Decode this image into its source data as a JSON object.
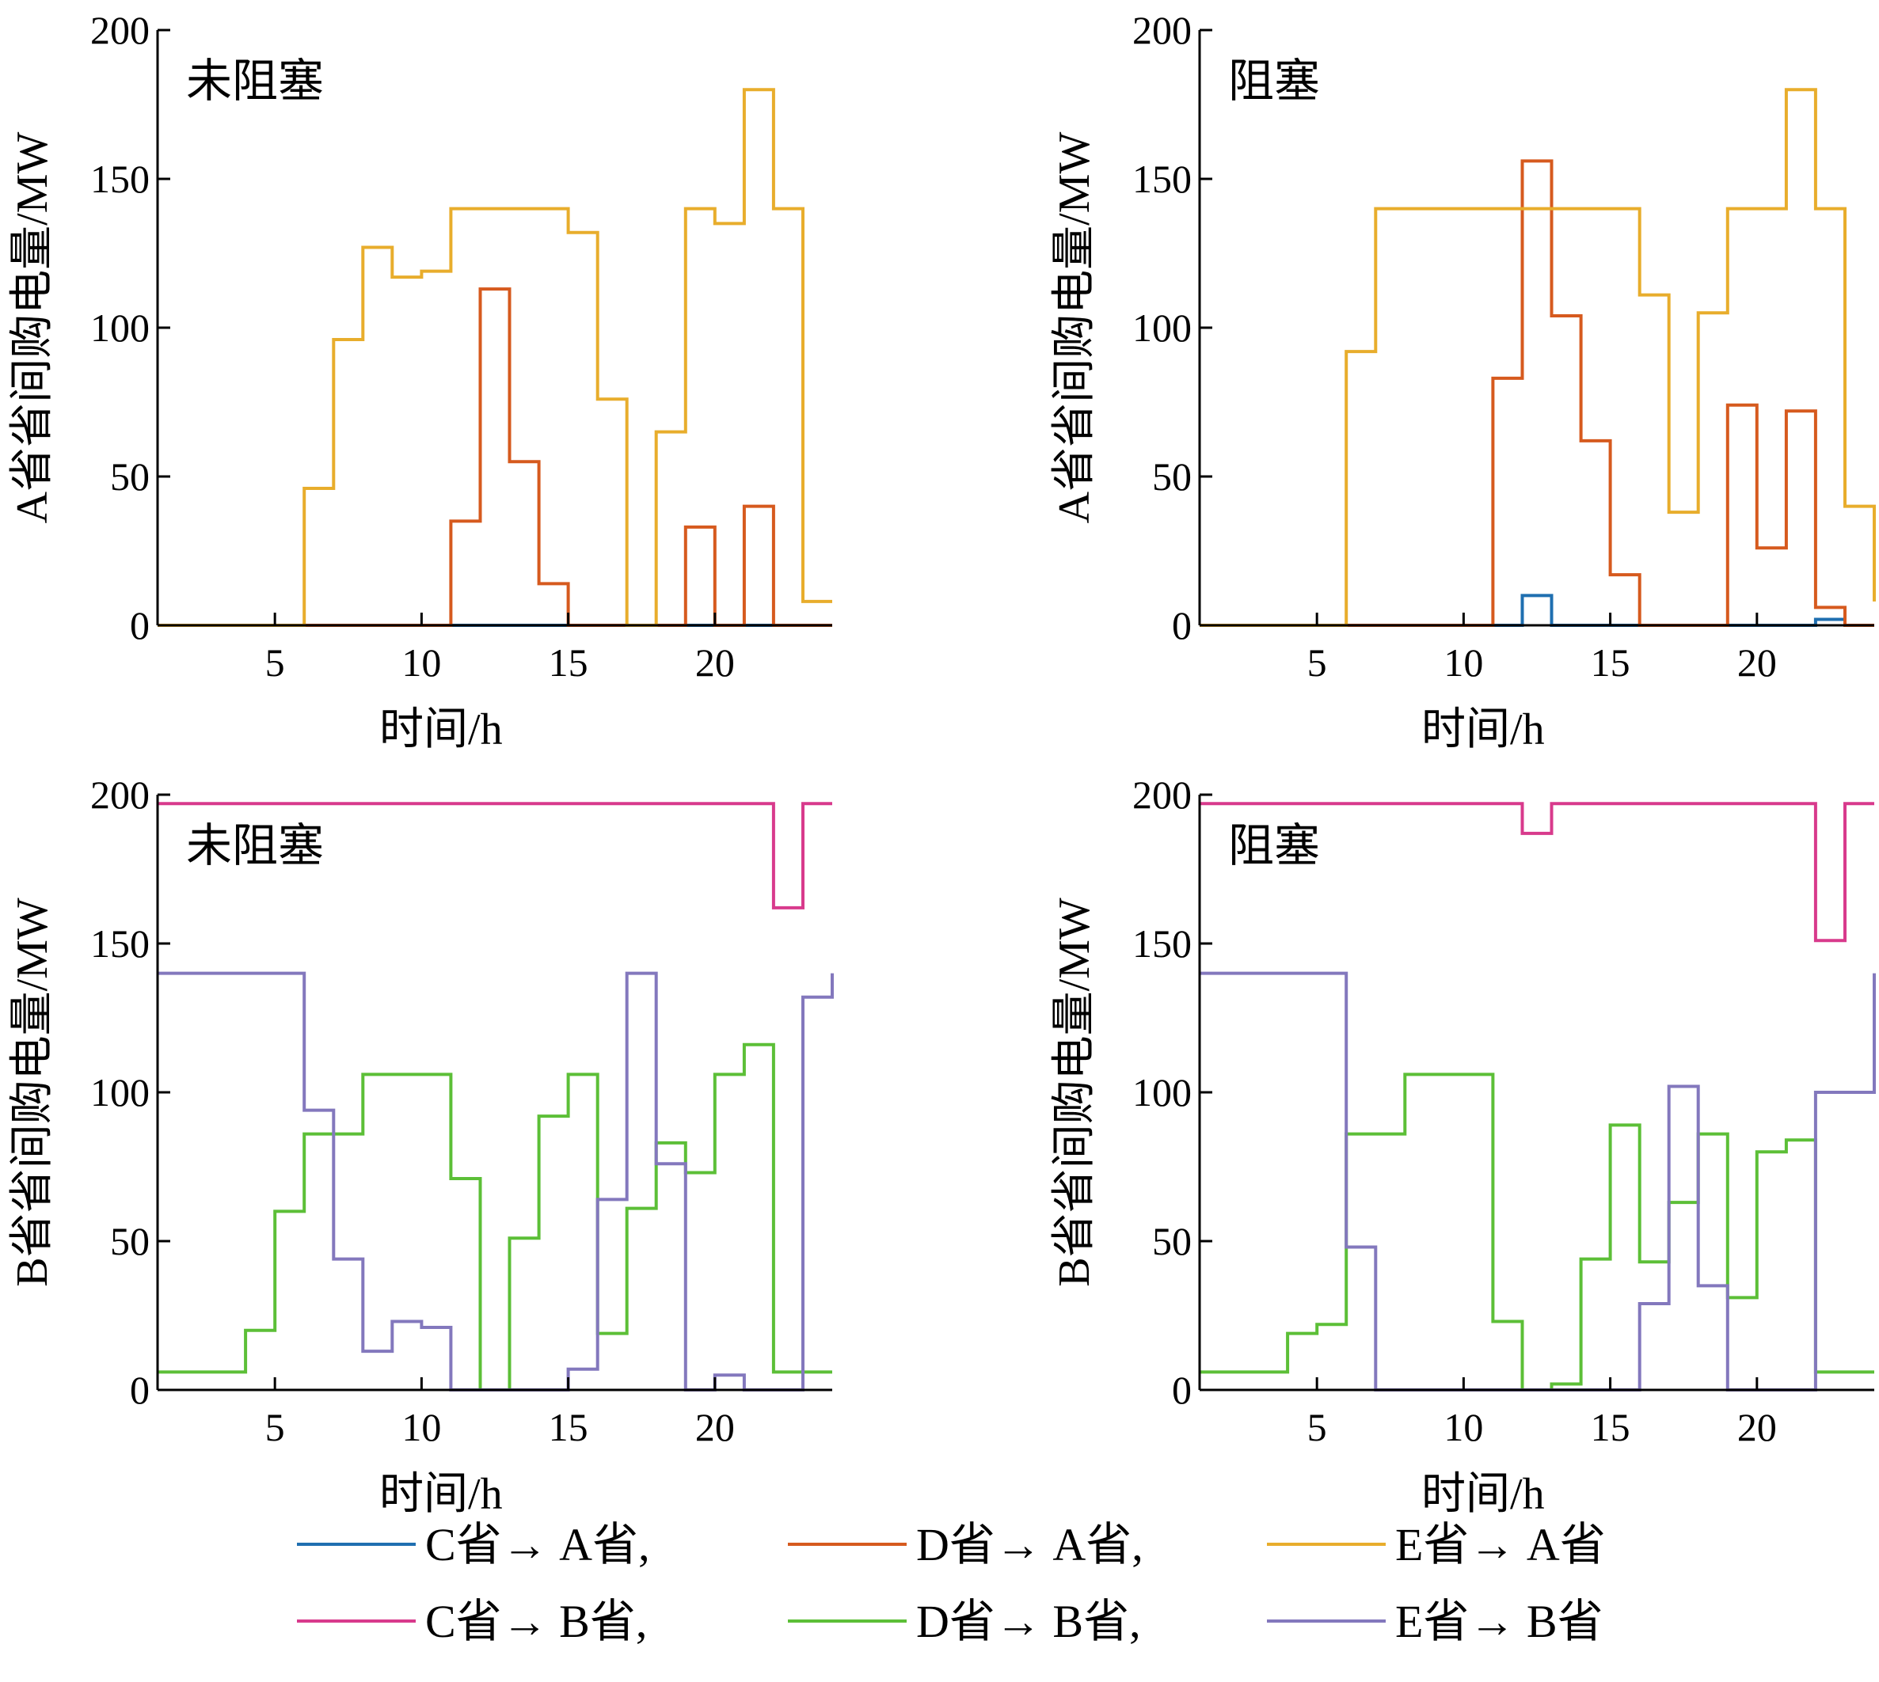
{
  "colors": {
    "c_to_a": "#1f6fb0",
    "d_to_a": "#d65a1e",
    "e_to_a": "#e8ad2c",
    "c_to_b": "#d83a8c",
    "d_to_b": "#5cbf37",
    "e_to_b": "#8378bd"
  },
  "legend": {
    "items": [
      {
        "label": "C省→ A省,",
        "color": "#1f6fb0"
      },
      {
        "label": "D省→ A省,",
        "color": "#d65a1e"
      },
      {
        "label": "E省→ A省",
        "color": "#e8ad2c"
      },
      {
        "label": "C省→ B省,",
        "color": "#d83a8c"
      },
      {
        "label": "D省→ B省,",
        "color": "#5cbf37"
      },
      {
        "label": "E省→ B省",
        "color": "#8378bd"
      }
    ]
  },
  "chart_data": [
    {
      "type": "line",
      "step": "post",
      "title": "未阻塞",
      "xlabel": "时间/h",
      "ylabel": "A省省间购电量/MW",
      "xlim": [
        1,
        24
      ],
      "ylim": [
        0,
        200
      ],
      "xticks": [
        5,
        10,
        15,
        20
      ],
      "yticks": [
        0,
        50,
        100,
        150,
        200
      ],
      "x": [
        1,
        2,
        3,
        4,
        5,
        6,
        7,
        8,
        9,
        10,
        11,
        12,
        13,
        14,
        15,
        16,
        17,
        18,
        19,
        20,
        21,
        22,
        23,
        24
      ],
      "series": [
        {
          "name": "C省→ A省",
          "color": "#1f6fb0",
          "values": [
            0,
            0,
            0,
            0,
            0,
            0,
            0,
            0,
            0,
            0,
            0,
            0,
            0,
            0,
            0,
            0,
            0,
            0,
            0,
            0,
            0,
            0,
            0,
            0
          ]
        },
        {
          "name": "D省→ A省",
          "color": "#d65a1e",
          "values": [
            0,
            0,
            0,
            0,
            0,
            0,
            0,
            0,
            0,
            0,
            35,
            113,
            55,
            14,
            0,
            0,
            0,
            0,
            33,
            0,
            40,
            0,
            0,
            0
          ]
        },
        {
          "name": "E省→ A省",
          "color": "#e8ad2c",
          "values": [
            0,
            0,
            0,
            0,
            0,
            46,
            96,
            127,
            117,
            119,
            140,
            140,
            140,
            140,
            132,
            76,
            0,
            65,
            140,
            135,
            180,
            140,
            8,
            8
          ]
        }
      ]
    },
    {
      "type": "line",
      "step": "post",
      "title": "阻塞",
      "xlabel": "时间/h",
      "ylabel": "A省省间购电量/MW",
      "xlim": [
        1,
        24
      ],
      "ylim": [
        0,
        200
      ],
      "xticks": [
        5,
        10,
        15,
        20
      ],
      "yticks": [
        0,
        50,
        100,
        150,
        200
      ],
      "x": [
        1,
        2,
        3,
        4,
        5,
        6,
        7,
        8,
        9,
        10,
        11,
        12,
        13,
        14,
        15,
        16,
        17,
        18,
        19,
        20,
        21,
        22,
        23,
        24
      ],
      "series": [
        {
          "name": "C省→ A省",
          "color": "#1f6fb0",
          "values": [
            0,
            0,
            0,
            0,
            0,
            0,
            0,
            0,
            0,
            0,
            0,
            10,
            0,
            0,
            0,
            0,
            0,
            0,
            0,
            0,
            0,
            2,
            0,
            0
          ]
        },
        {
          "name": "D省→ A省",
          "color": "#d65a1e",
          "values": [
            0,
            0,
            0,
            0,
            0,
            0,
            0,
            0,
            0,
            0,
            83,
            156,
            104,
            62,
            17,
            0,
            0,
            0,
            74,
            26,
            72,
            6,
            0,
            0
          ]
        },
        {
          "name": "E省→ A省",
          "color": "#e8ad2c",
          "values": [
            0,
            0,
            0,
            0,
            0,
            92,
            140,
            140,
            140,
            140,
            140,
            140,
            140,
            140,
            140,
            111,
            38,
            105,
            140,
            140,
            180,
            140,
            40,
            8
          ]
        }
      ]
    },
    {
      "type": "line",
      "step": "post",
      "title": "未阻塞",
      "xlabel": "时间/h",
      "ylabel": "B省省间购电量/MW",
      "xlim": [
        1,
        24
      ],
      "ylim": [
        0,
        200
      ],
      "xticks": [
        5,
        10,
        15,
        20
      ],
      "yticks": [
        0,
        50,
        100,
        150,
        200
      ],
      "x": [
        1,
        2,
        3,
        4,
        5,
        6,
        7,
        8,
        9,
        10,
        11,
        12,
        13,
        14,
        15,
        16,
        17,
        18,
        19,
        20,
        21,
        22,
        23,
        24
      ],
      "series": [
        {
          "name": "C省→ B省",
          "color": "#d83a8c",
          "values": [
            197,
            197,
            197,
            197,
            197,
            197,
            197,
            197,
            197,
            197,
            197,
            197,
            197,
            197,
            197,
            197,
            197,
            197,
            197,
            197,
            197,
            162,
            197,
            197
          ]
        },
        {
          "name": "D省→ B省",
          "color": "#5cbf37",
          "values": [
            6,
            6,
            6,
            20,
            60,
            86,
            86,
            106,
            106,
            106,
            71,
            0,
            51,
            92,
            106,
            19,
            61,
            83,
            73,
            106,
            116,
            6,
            6,
            6
          ]
        },
        {
          "name": "E省→ B省",
          "color": "#8378bd",
          "values": [
            140,
            140,
            140,
            140,
            140,
            94,
            44,
            13,
            23,
            21,
            0,
            0,
            0,
            0,
            7,
            64,
            140,
            76,
            0,
            5,
            0,
            0,
            132,
            140
          ]
        }
      ]
    },
    {
      "type": "line",
      "step": "post",
      "title": "阻塞",
      "xlabel": "时间/h",
      "ylabel": "B省省间购电量/MW",
      "xlim": [
        1,
        24
      ],
      "ylim": [
        0,
        200
      ],
      "xticks": [
        5,
        10,
        15,
        20
      ],
      "yticks": [
        0,
        50,
        100,
        150,
        200
      ],
      "x": [
        1,
        2,
        3,
        4,
        5,
        6,
        7,
        8,
        9,
        10,
        11,
        12,
        13,
        14,
        15,
        16,
        17,
        18,
        19,
        20,
        21,
        22,
        23,
        24
      ],
      "series": [
        {
          "name": "C省→ B省",
          "color": "#d83a8c",
          "values": [
            197,
            197,
            197,
            197,
            197,
            197,
            197,
            197,
            197,
            197,
            197,
            187,
            197,
            197,
            197,
            197,
            197,
            197,
            197,
            197,
            197,
            151,
            197,
            197
          ]
        },
        {
          "name": "D省→ B省",
          "color": "#5cbf37",
          "values": [
            6,
            6,
            6,
            19,
            22,
            86,
            86,
            106,
            106,
            106,
            23,
            0,
            2,
            44,
            89,
            43,
            63,
            86,
            31,
            80,
            84,
            6,
            6,
            6
          ]
        },
        {
          "name": "E省→ B省",
          "color": "#8378bd",
          "values": [
            140,
            140,
            140,
            140,
            140,
            48,
            0,
            0,
            0,
            0,
            0,
            0,
            0,
            0,
            0,
            29,
            102,
            35,
            0,
            0,
            0,
            100,
            100,
            140
          ]
        }
      ]
    }
  ]
}
